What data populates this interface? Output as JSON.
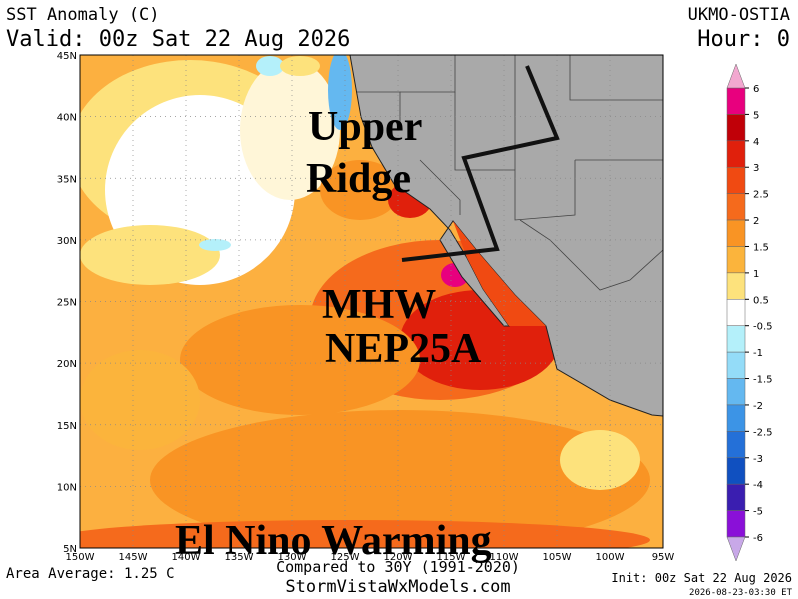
{
  "header": {
    "title": "SST Anomaly (C)",
    "valid": "Valid: 00z Sat 22 Aug 2026",
    "model": "UKMO-OSTIA",
    "hour": "Hour: 0"
  },
  "map": {
    "lat_labels": [
      "45N",
      "40N",
      "35N",
      "30N",
      "25N",
      "20N",
      "15N",
      "10N",
      "5N"
    ],
    "lon_labels": [
      "150W",
      "145W",
      "140W",
      "135W",
      "130W",
      "125W",
      "120W",
      "115W",
      "110W",
      "105W",
      "100W",
      "95W"
    ],
    "annotations": [
      "Upper",
      "Ridge",
      "MHW",
      "NEP25A",
      "El Nino Warming"
    ]
  },
  "colorbar": {
    "ticks": [
      6,
      5,
      4,
      3,
      2.5,
      2,
      1.5,
      1,
      0.5,
      -0.5,
      -1,
      -1.5,
      -2,
      -2.5,
      -3,
      -4,
      -5,
      -6
    ],
    "colors": [
      "#e8007e",
      "#c00008",
      "#e0200c",
      "#f04a12",
      "#f56a1c",
      "#f99424",
      "#fbb43c",
      "#fde27c",
      "#ffffff",
      "#b4f0fa",
      "#94dcf8",
      "#64b8f0",
      "#3c94e6",
      "#2470d8",
      "#1050c0",
      "#3a1eb0",
      "#8a10d8"
    ],
    "top_color": "#f2a8d0",
    "bottom_color": "#c8a8e8"
  },
  "footer": {
    "average": "Area Average: 1.25 C",
    "compared": "Compared to 30Y (1991-2020)",
    "site": "StormVistaWxModels.com",
    "init": "Init: 00z Sat 22 Aug 2026",
    "stamp": "2026-08-23-03:30 ET"
  }
}
